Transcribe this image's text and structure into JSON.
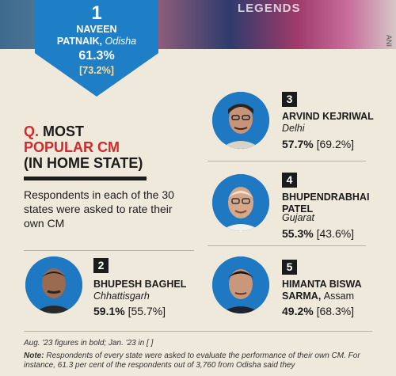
{
  "banner": {
    "legends_text": "LEGENDS",
    "side_text": "ANI"
  },
  "top_cm": {
    "rank": "1",
    "name_line1": "NAVEEN",
    "name_line2": "PATNAIK,",
    "state": "Odisha",
    "aug_pct": "61.3%",
    "jan_pct": "[73.2%]"
  },
  "question": {
    "prefix": "Q.",
    "line1": "MOST",
    "line2": "POPULAR CM",
    "line3": "(IN HOME STATE)",
    "description": "Respondents in each of the 30 states were asked to rate their own CM"
  },
  "cms": [
    {
      "rank": "2",
      "name_line1": "BHUPESH BAGHEL",
      "name_line2": "",
      "state": "Chhattisgarh",
      "aug_pct": "59.1%",
      "jan_pct": "[55.7%]"
    },
    {
      "rank": "3",
      "name_line1": "ARVIND KEJRIWAL",
      "name_line2": "",
      "state": "Delhi",
      "aug_pct": "57.7%",
      "jan_pct": "[69.2%]"
    },
    {
      "rank": "4",
      "name_line1": "BHUPENDRABHAI",
      "name_line2": "PATEL",
      "state": "Gujarat",
      "aug_pct": "55.3%",
      "jan_pct": "[43.6%]"
    },
    {
      "rank": "5",
      "name_line1": "HIMANTA BISWA",
      "name_line2": "SARMA,",
      "state": "Assam",
      "aug_pct": "49.2%",
      "jan_pct": "[68.3%]"
    }
  ],
  "footnote": {
    "dates": "Aug. '23 figures in bold; Jan. '23 in [ ]",
    "note_label": "Note:",
    "note_text": "Respondents of every state were asked to evaluate the performance of their own CM. For instance, 61.3 per cent of the respondents out of 3,760 from Odisha said they"
  },
  "colors": {
    "accent_red": "#d3292c",
    "accent_blue": "#1f7fc6",
    "background": "#efe9db"
  }
}
